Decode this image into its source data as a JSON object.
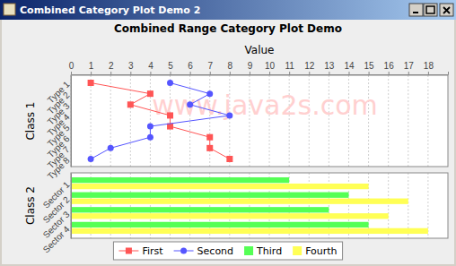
{
  "window_title": "Combined Category Plot Demo 2",
  "chart_data": {
    "type": "combined",
    "title": "Combined Range Category Plot Demo",
    "x_label": "Value",
    "orientation": "horizontal",
    "xlim": [
      0,
      19
    ],
    "xticks": [
      0,
      1,
      2,
      3,
      4,
      5,
      6,
      7,
      8,
      9,
      10,
      11,
      12,
      13,
      14,
      15,
      16,
      17,
      18
    ],
    "grid": true,
    "legend": "bottom",
    "annotations": [
      "www.java2s.com"
    ],
    "subplots": [
      {
        "type": "line",
        "y_label": "Class 1",
        "categories": [
          "Type 1",
          "Type 2",
          "Type 3",
          "Type 4",
          "Type 5",
          "Type 6",
          "Type 7",
          "Type 8"
        ],
        "series": [
          {
            "name": "First",
            "color": "#ff5555",
            "marker": "square",
            "values": [
              1,
              4,
              3,
              5,
              5,
              7,
              7,
              8
            ]
          },
          {
            "name": "Second",
            "color": "#5555ff",
            "marker": "circle",
            "values": [
              5,
              7,
              6,
              8,
              4,
              4,
              2,
              1
            ]
          }
        ]
      },
      {
        "type": "bar",
        "y_label": "Class 2",
        "categories": [
          "Sector 1",
          "Sector 2",
          "Sector 3",
          "Sector 4"
        ],
        "series": [
          {
            "name": "Third",
            "color": "#55ff55",
            "values": [
              11,
              14,
              13,
              15
            ]
          },
          {
            "name": "Fourth",
            "color": "#ffff55",
            "values": [
              15,
              17,
              16,
              18
            ]
          }
        ]
      }
    ]
  }
}
